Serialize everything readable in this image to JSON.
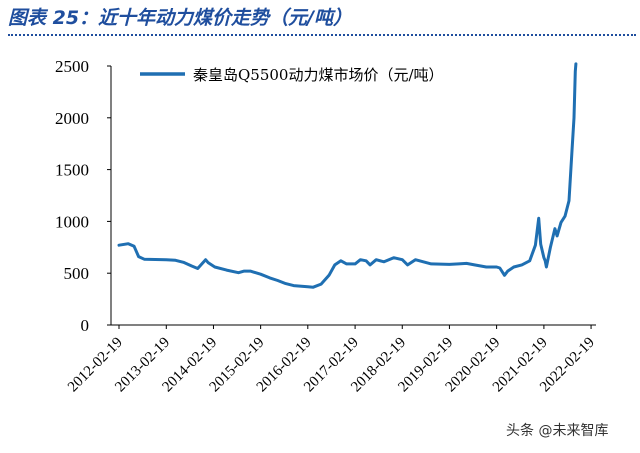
{
  "figure": {
    "title": "图表 25：近十年动力煤价走势（元/吨）"
  },
  "watermark": "头条 @未来智库",
  "chart_data": {
    "type": "line",
    "xlabel": "",
    "ylabel": "",
    "ylim": [
      0,
      2500
    ],
    "yticks": [
      0,
      500,
      1000,
      1500,
      2000,
      2500
    ],
    "xticks": [
      "2012-02-19",
      "2013-02-19",
      "2014-02-19",
      "2015-02-19",
      "2016-02-19",
      "2017-02-19",
      "2018-02-19",
      "2019-02-19",
      "2020-02-19",
      "2021-02-19",
      "2022-02-19"
    ],
    "grid": false,
    "legend": "top-left",
    "color": "#1f6fb2",
    "series": [
      {
        "name": "秦皇岛Q5500动力煤市场价（元/吨）",
        "points": [
          [
            "2012-02-19",
            770
          ],
          [
            "2012-05-01",
            785
          ],
          [
            "2012-06-15",
            760
          ],
          [
            "2012-07-20",
            660
          ],
          [
            "2012-09-01",
            635
          ],
          [
            "2013-02-19",
            630
          ],
          [
            "2013-05-01",
            625
          ],
          [
            "2013-07-01",
            605
          ],
          [
            "2013-09-01",
            570
          ],
          [
            "2013-10-20",
            545
          ],
          [
            "2013-12-20",
            630
          ],
          [
            "2014-01-10",
            600
          ],
          [
            "2014-03-01",
            560
          ],
          [
            "2014-06-01",
            530
          ],
          [
            "2014-09-01",
            505
          ],
          [
            "2014-10-15",
            520
          ],
          [
            "2014-12-01",
            520
          ],
          [
            "2015-02-19",
            490
          ],
          [
            "2015-05-01",
            455
          ],
          [
            "2015-07-01",
            430
          ],
          [
            "2015-09-01",
            400
          ],
          [
            "2015-11-01",
            380
          ],
          [
            "2016-02-19",
            370
          ],
          [
            "2016-04-01",
            365
          ],
          [
            "2016-06-01",
            395
          ],
          [
            "2016-08-01",
            480
          ],
          [
            "2016-09-15",
            580
          ],
          [
            "2016-11-01",
            620
          ],
          [
            "2016-12-15",
            590
          ],
          [
            "2017-02-19",
            590
          ],
          [
            "2017-04-01",
            630
          ],
          [
            "2017-05-15",
            620
          ],
          [
            "2017-06-15",
            580
          ],
          [
            "2017-08-01",
            630
          ],
          [
            "2017-10-01",
            610
          ],
          [
            "2017-12-15",
            650
          ],
          [
            "2018-02-19",
            630
          ],
          [
            "2018-04-01",
            580
          ],
          [
            "2018-06-01",
            630
          ],
          [
            "2018-08-01",
            610
          ],
          [
            "2018-10-01",
            590
          ],
          [
            "2019-02-19",
            585
          ],
          [
            "2019-05-01",
            590
          ],
          [
            "2019-07-01",
            595
          ],
          [
            "2019-09-01",
            580
          ],
          [
            "2019-12-01",
            560
          ],
          [
            "2020-02-19",
            560
          ],
          [
            "2020-03-15",
            550
          ],
          [
            "2020-04-20",
            480
          ],
          [
            "2020-05-15",
            520
          ],
          [
            "2020-07-01",
            560
          ],
          [
            "2020-09-01",
            580
          ],
          [
            "2020-11-01",
            620
          ],
          [
            "2020-12-15",
            770
          ],
          [
            "2021-01-10",
            1030
          ],
          [
            "2021-01-25",
            780
          ],
          [
            "2021-02-19",
            650
          ],
          [
            "2021-03-01",
            620
          ],
          [
            "2021-03-10",
            560
          ],
          [
            "2021-04-10",
            750
          ],
          [
            "2021-05-15",
            930
          ],
          [
            "2021-06-01",
            860
          ],
          [
            "2021-07-01",
            990
          ],
          [
            "2021-08-01",
            1050
          ],
          [
            "2021-09-01",
            1200
          ],
          [
            "2021-09-25",
            1700
          ],
          [
            "2021-10-10",
            2000
          ],
          [
            "2021-10-20",
            2450
          ],
          [
            "2021-10-25",
            2520
          ]
        ]
      }
    ]
  }
}
